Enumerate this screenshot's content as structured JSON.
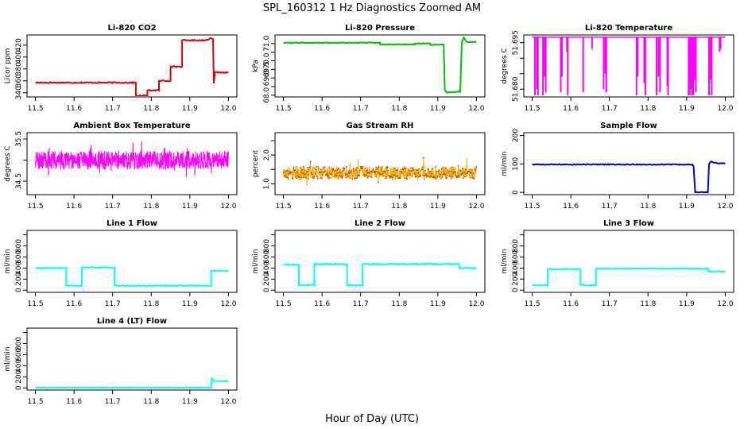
{
  "figure": {
    "title": "SPL_160312  1 Hz Diagnostics Zoomed AM",
    "xlabel": "Hour of Day (UTC)"
  },
  "chart_data": [
    {
      "id": "co2",
      "type": "line",
      "title": "Li-820 CO2",
      "ylabel": "Licor ppm",
      "color": "#e00000",
      "xlim": [
        11.5,
        12.0
      ],
      "xticks": [
        11.5,
        11.6,
        11.7,
        11.8,
        11.9,
        12.0
      ],
      "ylim": [
        333,
        437
      ],
      "yticks": [
        340,
        360,
        380,
        400,
        420
      ],
      "noise": 1,
      "x": [
        11.5,
        11.76,
        11.76,
        11.79,
        11.79,
        11.82,
        11.82,
        11.85,
        11.85,
        11.88,
        11.88,
        11.94,
        11.955,
        11.96,
        11.962,
        11.965,
        12.0
      ],
      "y": [
        357,
        357,
        335,
        335,
        344,
        344,
        360,
        360,
        384,
        384,
        428,
        428,
        432,
        430,
        356,
        374,
        374
      ]
    },
    {
      "id": "pressure",
      "type": "line",
      "title": "Li-820 Pressure",
      "ylabel": "kPa",
      "color": "#00c000",
      "xlim": [
        11.5,
        12.0
      ],
      "xticks": [
        11.5,
        11.6,
        11.7,
        11.8,
        11.9,
        12.0
      ],
      "ylim": [
        67.9,
        71.5
      ],
      "yticks": [
        68.0,
        68.5,
        69.0,
        69.5,
        70.0,
        70.5,
        71.0
      ],
      "yticklabels": [
        "68.0",
        "",
        "69.0",
        "69.5",
        "70.0",
        "",
        "71.0"
      ],
      "noise": 0.02,
      "x": [
        11.5,
        11.75,
        11.75,
        11.84,
        11.84,
        11.88,
        11.88,
        11.915,
        11.918,
        11.924,
        11.958,
        11.962,
        11.967,
        11.975,
        12.0
      ],
      "y": [
        71.05,
        71.05,
        70.95,
        70.95,
        71.0,
        71.0,
        70.93,
        70.93,
        68.3,
        68.15,
        68.2,
        71.05,
        71.35,
        71.1,
        71.1
      ]
    },
    {
      "id": "licor-temp",
      "type": "spikes",
      "title": "Li-820 Temperature",
      "ylabel": "degrees C",
      "color": "#ff00ff",
      "xlim": [
        11.5,
        12.0
      ],
      "xticks": [
        11.5,
        11.6,
        11.7,
        11.8,
        11.9,
        12.0
      ],
      "ylim": [
        51.6775,
        51.6975
      ],
      "yticks": [
        51.68,
        51.685,
        51.69,
        51.695
      ],
      "yticklabels": [
        "51.680",
        "",
        "",
        "51.695"
      ],
      "baseline": 51.6968,
      "spikes": [
        [
          11.507,
          51.678
        ],
        [
          11.512,
          51.68
        ],
        [
          11.515,
          51.678
        ],
        [
          11.528,
          51.678
        ],
        [
          11.531,
          51.684
        ],
        [
          11.535,
          51.679
        ],
        [
          11.574,
          51.679
        ],
        [
          11.577,
          51.684
        ],
        [
          11.59,
          51.692
        ],
        [
          11.592,
          51.678
        ],
        [
          11.632,
          51.679
        ],
        [
          11.655,
          51.693
        ],
        [
          11.685,
          51.68
        ],
        [
          11.689,
          51.685
        ],
        [
          11.692,
          51.679
        ],
        [
          11.77,
          51.678
        ],
        [
          11.773,
          51.684
        ],
        [
          11.79,
          51.682
        ],
        [
          11.793,
          51.678
        ],
        [
          11.822,
          51.678
        ],
        [
          11.827,
          51.684
        ],
        [
          11.831,
          51.679
        ],
        [
          11.85,
          51.681
        ],
        [
          11.852,
          51.678
        ],
        [
          11.905,
          51.678
        ],
        [
          11.908,
          51.678
        ],
        [
          11.911,
          51.68
        ],
        [
          11.914,
          51.678
        ],
        [
          11.917,
          51.678
        ],
        [
          11.92,
          51.683
        ],
        [
          11.924,
          51.679
        ],
        [
          11.958,
          51.678
        ],
        [
          11.961,
          51.683
        ],
        [
          11.965,
          51.678
        ],
        [
          11.985,
          51.692
        ],
        [
          11.988,
          51.693
        ]
      ]
    },
    {
      "id": "box-temp",
      "type": "noise",
      "title": "Ambient Box Temperature",
      "ylabel": "degrees C",
      "color": "#ff00ff",
      "xlim": [
        11.5,
        12.0
      ],
      "xticks": [
        11.5,
        11.6,
        11.7,
        11.8,
        11.9,
        12.0
      ],
      "ylim": [
        34.18,
        35.65
      ],
      "yticks": [
        34.5,
        35.0,
        35.5
      ],
      "yticklabels": [
        "34.5",
        "",
        "35.5"
      ],
      "center": 35.0,
      "amplitude": 0.22,
      "extreme": 0.45
    },
    {
      "id": "rh",
      "type": "noise",
      "title": "Gas Stream RH",
      "ylabel": "percent",
      "color": "#ffa500",
      "marker": "#a05a00",
      "xlim": [
        11.5,
        12.0
      ],
      "xticks": [
        11.5,
        11.6,
        11.7,
        11.8,
        11.9,
        12.0
      ],
      "ylim": [
        0.62,
        2.78
      ],
      "yticks": [
        1.0,
        1.5,
        2.0,
        2.5
      ],
      "yticklabels": [
        "1.0",
        "",
        "2.0",
        ""
      ],
      "center": 1.38,
      "amplitude": 0.22,
      "extreme": 0.55
    },
    {
      "id": "sample-flow",
      "type": "line",
      "title": "Sample Flow",
      "ylabel": "ml/min",
      "color": "#0000c8",
      "xlim": [
        11.5,
        12.0
      ],
      "xticks": [
        11.5,
        11.6,
        11.7,
        11.8,
        11.9,
        12.0
      ],
      "ylim": [
        -8,
        210
      ],
      "yticks": [
        0,
        100,
        200
      ],
      "noise": 1.5,
      "x": [
        11.5,
        11.915,
        11.918,
        11.922,
        11.955,
        11.958,
        11.962,
        11.98,
        12.0
      ],
      "y": [
        98,
        98,
        90,
        0,
        0,
        100,
        108,
        102,
        102
      ]
    },
    {
      "id": "line1",
      "type": "line",
      "title": "Line 1 Flow",
      "ylabel": "ml/min",
      "color": "#00ffff",
      "xlim": [
        11.5,
        12.0
      ],
      "xticks": [
        11.5,
        11.6,
        11.7,
        11.8,
        11.9,
        12.0
      ],
      "ylim": [
        -40,
        1080
      ],
      "yticks": [
        0,
        200,
        400,
        600,
        800,
        1000
      ],
      "yticklabels": [
        "0",
        "200",
        "400",
        "600",
        "800",
        ""
      ],
      "noise": 8,
      "x": [
        11.5,
        11.58,
        11.58,
        11.62,
        11.62,
        11.705,
        11.705,
        11.955,
        11.955,
        12.0
      ],
      "y": [
        400,
        400,
        80,
        80,
        410,
        410,
        80,
        80,
        350,
        350
      ]
    },
    {
      "id": "line2",
      "type": "line",
      "title": "Line 2 Flow",
      "ylabel": "ml/min",
      "color": "#00ffff",
      "xlim": [
        11.5,
        12.0
      ],
      "xticks": [
        11.5,
        11.6,
        11.7,
        11.8,
        11.9,
        12.0
      ],
      "ylim": [
        -40,
        1080
      ],
      "yticks": [
        0,
        200,
        400,
        600,
        800,
        1000
      ],
      "yticklabels": [
        "0",
        "200",
        "400",
        "600",
        "800",
        ""
      ],
      "noise": 12,
      "x": [
        11.5,
        11.54,
        11.54,
        11.58,
        11.58,
        11.665,
        11.665,
        11.705,
        11.705,
        11.955,
        11.955,
        12.0
      ],
      "y": [
        460,
        460,
        90,
        90,
        470,
        470,
        90,
        90,
        470,
        470,
        400,
        400
      ]
    },
    {
      "id": "line3",
      "type": "line",
      "title": "Line 3 Flow",
      "ylabel": "ml/min",
      "color": "#00ffff",
      "xlim": [
        11.5,
        12.0
      ],
      "xticks": [
        11.5,
        11.6,
        11.7,
        11.8,
        11.9,
        12.0
      ],
      "ylim": [
        -40,
        1080
      ],
      "yticks": [
        0,
        200,
        400,
        600,
        800,
        1000
      ],
      "yticklabels": [
        "0",
        "200",
        "400",
        "600",
        "800",
        ""
      ],
      "noise": 8,
      "x": [
        11.5,
        11.54,
        11.54,
        11.625,
        11.625,
        11.665,
        11.665,
        11.955,
        11.955,
        12.0
      ],
      "y": [
        90,
        90,
        380,
        380,
        90,
        90,
        390,
        390,
        340,
        340
      ]
    },
    {
      "id": "line4",
      "type": "line",
      "title": "Line 4 (LT) Flow",
      "ylabel": "ml/min",
      "color": "#00ffff",
      "xlim": [
        11.5,
        12.0
      ],
      "xticks": [
        11.5,
        11.6,
        11.7,
        11.8,
        11.9,
        12.0
      ],
      "ylim": [
        -40,
        1080
      ],
      "yticks": [
        0,
        200,
        400,
        600,
        800,
        1000
      ],
      "yticklabels": [
        "0",
        "200",
        "400",
        "600",
        "800",
        ""
      ],
      "noise": 3,
      "x": [
        11.5,
        11.955,
        11.957,
        11.96,
        11.965,
        12.0
      ],
      "y": [
        5,
        5,
        190,
        140,
        120,
        120
      ]
    }
  ]
}
